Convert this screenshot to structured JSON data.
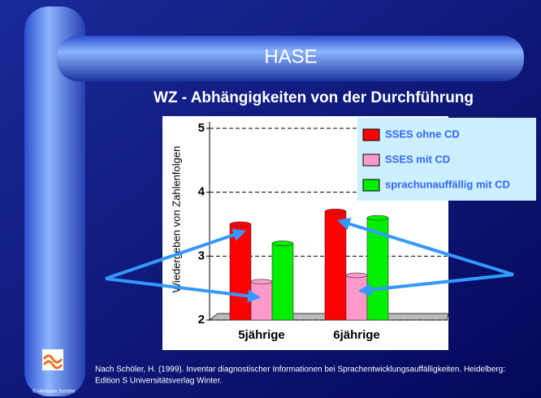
{
  "slide": {
    "header": "HASE",
    "footnote": [
      "Nach Schöler, H. (1999). Inventar diagnostischer Informationen bei Sprachentwicklungsauffälligkeiten. Heidelberg:",
      "Edition S Universitätsverlag Winter."
    ],
    "copyright": "© Hermann Schöler"
  },
  "chart_data": {
    "type": "bar",
    "title": "WZ - Abhängigkeiten von der Durchführung",
    "y_label": "Wiedergeben von Zahlenfolgen",
    "categories": [
      "5jährige",
      "6jährige"
    ],
    "series": [
      {
        "name": "SSES ohne CD",
        "color": "#ff0000",
        "values": [
          3.5,
          3.7
        ]
      },
      {
        "name": "SSES mit CD",
        "color": "#ff99cc",
        "values": [
          2.6,
          2.7
        ]
      },
      {
        "name": "sprachunauffällig mit CD",
        "color": "#00ee00",
        "values": [
          3.2,
          3.6
        ]
      }
    ],
    "ylim": [
      2,
      5
    ],
    "yticks": [
      2,
      3,
      4,
      5
    ],
    "grid": true
  }
}
